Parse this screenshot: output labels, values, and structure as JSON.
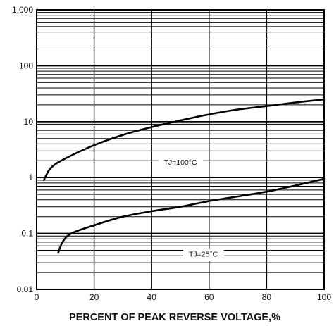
{
  "chart_data": {
    "type": "line",
    "title": "",
    "xlabel": "PERCENT OF PEAK REVERSE VOLTAGE,%",
    "ylabel": "",
    "xlim": [
      0,
      100
    ],
    "ylim": [
      0.01,
      1000
    ],
    "yscale": "log",
    "grid": true,
    "x_ticks": [
      "0",
      "20",
      "40",
      "60",
      "80",
      "100"
    ],
    "y_ticks": [
      "0.01",
      "0.1",
      "1",
      "10",
      "100",
      "1,000"
    ],
    "series": [
      {
        "name": "TJ=100°C",
        "label_at": {
          "x": 50,
          "y": 1.9
        },
        "points": [
          [
            2.5,
            0.9
          ],
          [
            5,
            1.5
          ],
          [
            10,
            2.2
          ],
          [
            20,
            3.8
          ],
          [
            30,
            5.8
          ],
          [
            40,
            8.0
          ],
          [
            50,
            10.5
          ],
          [
            60,
            13.5
          ],
          [
            70,
            16.5
          ],
          [
            80,
            19.0
          ],
          [
            90,
            22.0
          ],
          [
            100,
            25.0
          ]
        ]
      },
      {
        "name": "TJ=25°C",
        "label_at": {
          "x": 58,
          "y": 0.043
        },
        "points": [
          [
            7.5,
            0.045
          ],
          [
            9,
            0.07
          ],
          [
            12,
            0.1
          ],
          [
            20,
            0.14
          ],
          [
            30,
            0.2
          ],
          [
            40,
            0.25
          ],
          [
            50,
            0.3
          ],
          [
            60,
            0.38
          ],
          [
            70,
            0.46
          ],
          [
            80,
            0.56
          ],
          [
            90,
            0.72
          ],
          [
            100,
            0.95
          ]
        ]
      }
    ]
  }
}
